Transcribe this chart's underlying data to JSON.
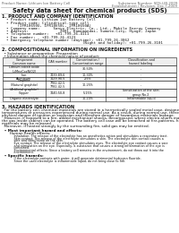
{
  "bg_color": "#ffffff",
  "header_left": "Product Name: Lithium Ion Battery Cell",
  "header_right_line1": "Substance Number: SDS-LIB-2009",
  "header_right_line2": "Establishment / Revision: Dec.7,2009",
  "title": "Safety data sheet for chemical products (SDS)",
  "section1_title": "1. PRODUCT AND COMPANY IDENTIFICATION",
  "section1_lines": [
    "  • Product name: Lithium Ion Battery Cell",
    "  • Product code: Cylindrical-type cell",
    "       (IFR18650U, IFR18650L, IFR18650A)",
    "  • Company name:      Sanyo Electric, Co., Ltd., Mobile Energy Company",
    "  • Address:              2001, Kamimandai, Sumoto-City, Hyogo, Japan",
    "  • Telephone number:   +81-799-26-4111",
    "  • Fax number:   +81-799-26-4123",
    "  • Emergency telephone number (daytime): +81-799-26-3062",
    "                                    (Night and holiday): +81-799-26-3101"
  ],
  "section2_title": "2. COMPOSITIONAL INFORMATION ON INGREDIENTS",
  "section2_line1": "  • Substance or preparation: Preparation",
  "section2_line2": "  • Information about the chemical nature of product:",
  "col_headers": [
    "Component\nCommon name",
    "CAS number",
    "Concentration /\nConcentration range",
    "Classification and\nhazard labeling"
  ],
  "table_rows": [
    [
      "Lithium cobalt oxide\n(LiMnxCoxNiO2)",
      "-",
      "30-50%",
      "-"
    ],
    [
      "Iron",
      "7439-89-6",
      "10-30%",
      "-"
    ],
    [
      "Aluminum",
      "7429-90-5",
      "2-5%",
      "-"
    ],
    [
      "Graphite\n(Natural graphite)\n(Artificial graphite)",
      "7782-42-5\n7782-42-5",
      "10-25%",
      "-"
    ],
    [
      "Copper",
      "7440-50-8",
      "5-15%",
      "Sensitization of the skin\ngroup No.2"
    ],
    [
      "Organic electrolyte",
      "-",
      "10-20%",
      "Inflammable liquid"
    ]
  ],
  "section3_title": "3. HAZARDS IDENTIFICATION",
  "section3_para": [
    "  For the battery cell, chemical materials are stored in a hermetically sealed metal case, designed to withstand",
    "temperatures or pressures experienced during normal use. As a result, during normal use, there is no",
    "physical danger of ignition or explosion and therefore danger of hazardous materials leakage.",
    "  However, if exposed to a fire, added mechanical shocks, decomposed, where electro-shorts may issue,",
    "the gas inside cabinet can be operated. The battery cell case will be breached at fire-patterns, hazardous",
    "materials may be released.",
    "  Moreover, if heated strongly by the surrounding fire, solid gas may be emitted."
  ],
  "bullet1": "  • Most important hazard and effects:",
  "human_health": "       Human health effects:",
  "human_lines": [
    "            Inhalation: The release of the electrolyte has an anesthetics action and stimulates a respiratory tract.",
    "            Skin contact: The release of the electrolyte stimulates a skin. The electrolyte skin contact causes a",
    "            sore and stimulation on the skin.",
    "            Eye contact: The release of the electrolyte stimulates eyes. The electrolyte eye contact causes a sore",
    "            and stimulation on the eye. Especially, a substance that causes a strong inflammation of the eye is",
    "            contained.",
    "            Environmental effects: Since a battery cell remains in the environment, do not throw out it into the",
    "            environment."
  ],
  "bullet2": "  • Specific hazards:",
  "specific_lines": [
    "            If the electrolyte contacts with water, it will generate detrimental hydrogen fluoride.",
    "            Since the used electrolyte is inflammable liquid, do not bring close to fire."
  ]
}
